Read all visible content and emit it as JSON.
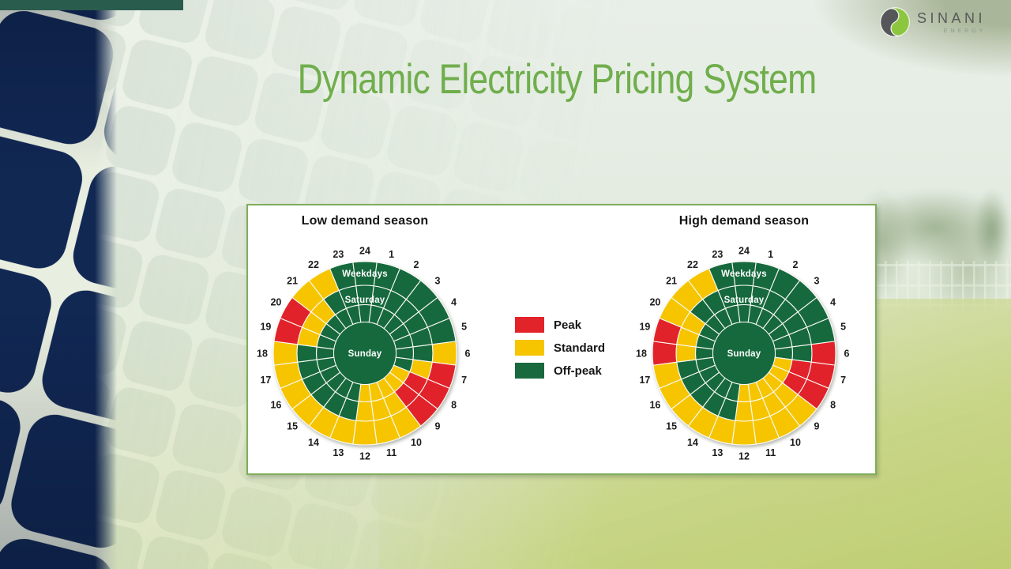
{
  "logo": {
    "brand": "SINANI",
    "sub": "ENERGY"
  },
  "title": "Dynamic Electricity Pricing System",
  "colors": {
    "peak": "#E2232A",
    "standard": "#F6C500",
    "offpeak": "#19693E"
  },
  "legend": {
    "items": [
      {
        "code": "P",
        "label": "Peak"
      },
      {
        "code": "S",
        "label": "Standard"
      },
      {
        "code": "O",
        "label": "Off-peak"
      }
    ]
  },
  "chart_data": [
    {
      "type": "sunburst",
      "title": "Low demand season",
      "hours": [
        1,
        2,
        3,
        4,
        5,
        6,
        7,
        8,
        9,
        10,
        11,
        12,
        13,
        14,
        15,
        16,
        17,
        18,
        19,
        20,
        21,
        22,
        23,
        24
      ],
      "value_legend": {
        "P": "Peak",
        "S": "Standard",
        "O": "Off-peak"
      },
      "rings": [
        {
          "name": "Sunday",
          "position": "inner",
          "segments": [
            "O",
            "O",
            "O",
            "O",
            "O",
            "O",
            "O",
            "S",
            "S",
            "S",
            "S",
            "S",
            "O",
            "O",
            "O",
            "O",
            "O",
            "O",
            "O",
            "O",
            "O",
            "O",
            "O",
            "O"
          ]
        },
        {
          "name": "Saturday",
          "position": "middle",
          "segments": [
            "O",
            "O",
            "O",
            "O",
            "O",
            "O",
            "S",
            "P",
            "P",
            "S",
            "S",
            "S",
            "O",
            "O",
            "O",
            "O",
            "O",
            "O",
            "S",
            "S",
            "S",
            "O",
            "O",
            "O"
          ]
        },
        {
          "name": "Weekdays",
          "position": "outer",
          "segments": [
            "O",
            "O",
            "O",
            "O",
            "O",
            "S",
            "P",
            "P",
            "P",
            "S",
            "S",
            "S",
            "S",
            "S",
            "S",
            "S",
            "S",
            "S",
            "P",
            "P",
            "S",
            "S",
            "O",
            "O"
          ]
        }
      ]
    },
    {
      "type": "sunburst",
      "title": "High demand season",
      "hours": [
        1,
        2,
        3,
        4,
        5,
        6,
        7,
        8,
        9,
        10,
        11,
        12,
        13,
        14,
        15,
        16,
        17,
        18,
        19,
        20,
        21,
        22,
        23,
        24
      ],
      "value_legend": {
        "P": "Peak",
        "S": "Standard",
        "O": "Off-peak"
      },
      "rings": [
        {
          "name": "Sunday",
          "position": "inner",
          "segments": [
            "O",
            "O",
            "O",
            "O",
            "O",
            "O",
            "S",
            "S",
            "S",
            "S",
            "S",
            "S",
            "O",
            "O",
            "O",
            "O",
            "O",
            "O",
            "O",
            "O",
            "O",
            "O",
            "O",
            "O"
          ]
        },
        {
          "name": "Saturday",
          "position": "middle",
          "segments": [
            "O",
            "O",
            "O",
            "O",
            "O",
            "O",
            "P",
            "P",
            "S",
            "S",
            "S",
            "S",
            "O",
            "O",
            "O",
            "O",
            "O",
            "S",
            "S",
            "S",
            "O",
            "O",
            "O",
            "O"
          ]
        },
        {
          "name": "Weekdays",
          "position": "outer",
          "segments": [
            "O",
            "O",
            "O",
            "O",
            "O",
            "P",
            "P",
            "P",
            "S",
            "S",
            "S",
            "S",
            "S",
            "S",
            "S",
            "S",
            "S",
            "P",
            "P",
            "S",
            "S",
            "S",
            "O",
            "O"
          ]
        }
      ]
    }
  ]
}
